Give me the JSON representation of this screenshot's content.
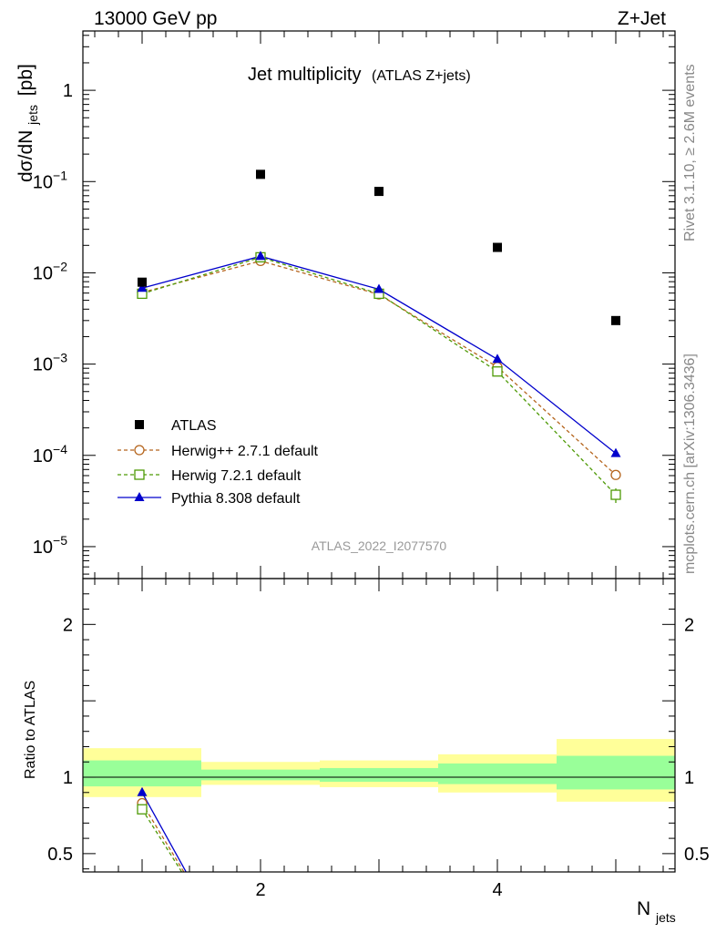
{
  "header": {
    "left": "13000 GeV pp",
    "right": "Z+Jet"
  },
  "side_labels": {
    "rivet": "Rivet 3.1.10, ≥ 2.6M events",
    "mcplots": "mcplots.cern.ch [arXiv:1306.3436]"
  },
  "chart_data": {
    "type": "scatter",
    "title": "Jet multiplicity",
    "subtitle": "(ATLAS Z+jets)",
    "watermark": "ATLAS_2022_I2077570",
    "xlabel_main": "N",
    "xlabel_sub": "jets",
    "ylabel_main": "dσ/dN",
    "ylabel_sub": "jets",
    "ylabel_unit": "[pb]",
    "ratio_ylabel": "Ratio to ATLAS",
    "x_ticks": [
      "2",
      "4"
    ],
    "y_ticks": [
      {
        "base": "10",
        "exp": "−5"
      },
      {
        "base": "10",
        "exp": "−4"
      },
      {
        "base": "10",
        "exp": "−3"
      },
      {
        "base": "10",
        "exp": "−2"
      },
      {
        "base": "10",
        "exp": "−1"
      },
      {
        "base": "1",
        "exp": ""
      }
    ],
    "ratio_ticks": [
      "0.5",
      "1",
      "2"
    ],
    "xlim": [
      0.5,
      5.5
    ],
    "ylim_log10": [
      -5.35,
      0.65
    ],
    "ratio_ylim": [
      0.38,
      2.3
    ],
    "legend_position": "bottom-left",
    "x": [
      1,
      2,
      3,
      4,
      5
    ],
    "series": [
      {
        "name": "ATLAS",
        "color": "#000000",
        "values": [
          0.0079,
          0.12,
          0.078,
          0.019,
          0.003
        ]
      },
      {
        "name": "Herwig++ 2.7.1 default",
        "color": "#b5651d",
        "values": [
          0.0061,
          0.0135,
          0.0058,
          0.00093,
          6.1e-05
        ]
      },
      {
        "name": "Herwig 7.2.1 default",
        "color": "#4e9a06",
        "values": [
          0.0059,
          0.0148,
          0.0059,
          0.00083,
          3.7e-05
        ]
      },
      {
        "name": "Pythia 8.308 default",
        "color": "#0000cc",
        "values": [
          0.0068,
          0.0152,
          0.0066,
          0.00113,
          0.000105
        ]
      }
    ],
    "ratio_bands": {
      "x_edges": [
        [
          0.5,
          1.5
        ],
        [
          1.5,
          2.5
        ],
        [
          2.5,
          3.5
        ],
        [
          3.5,
          4.5
        ],
        [
          4.5,
          5.5
        ]
      ],
      "outer": [
        [
          0.87,
          1.19
        ],
        [
          0.95,
          1.1
        ],
        [
          0.935,
          1.11
        ],
        [
          0.9,
          1.15
        ],
        [
          0.84,
          1.25
        ]
      ],
      "inner": [
        [
          0.94,
          1.11
        ],
        [
          0.98,
          1.05
        ],
        [
          0.97,
          1.06
        ],
        [
          0.955,
          1.09
        ],
        [
          0.92,
          1.14
        ]
      ],
      "outer_color": "#ffff99",
      "inner_color": "#99ff99"
    },
    "ratio_series": [
      {
        "color": "#b5651d",
        "x": [
          1,
          1.4
        ],
        "values": [
          0.83,
          0.32
        ]
      },
      {
        "color": "#4e9a06",
        "x": [
          1,
          1.4
        ],
        "values": [
          0.79,
          0.3
        ]
      },
      {
        "color": "#0000cc",
        "x": [
          1,
          1.4
        ],
        "values": [
          0.9,
          0.34
        ]
      }
    ]
  }
}
